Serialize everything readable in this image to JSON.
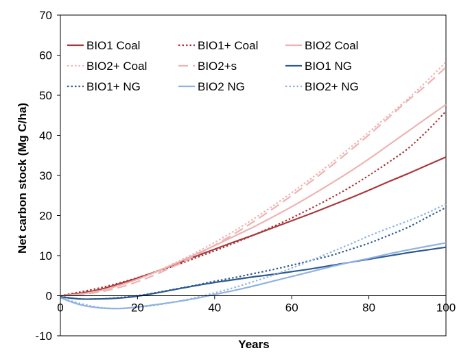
{
  "chart_data": {
    "type": "line",
    "xlabel": "Years",
    "ylabel": "Net carbon stock (Mg C/ha)",
    "xlim": [
      0,
      100
    ],
    "ylim": [
      -10,
      70
    ],
    "xticks": [
      0,
      20,
      40,
      60,
      80,
      100
    ],
    "yticks": [
      -10,
      0,
      10,
      20,
      30,
      40,
      50,
      60,
      70
    ],
    "grid": false,
    "legend_position": "top-left",
    "x": [
      0,
      5,
      10,
      15,
      20,
      25,
      30,
      35,
      40,
      45,
      50,
      55,
      60,
      65,
      70,
      75,
      80,
      85,
      90,
      95,
      100
    ],
    "series": [
      {
        "name": "BIO1 Coal",
        "color": "#A9373A",
        "dash": "solid",
        "values": [
          0,
          0.6,
          1.5,
          2.9,
          4.4,
          6.1,
          7.9,
          9.8,
          11.6,
          13.4,
          15.1,
          16.9,
          18.7,
          20.5,
          22.4,
          24.3,
          26.3,
          28.4,
          30.4,
          32.5,
          34.6
        ]
      },
      {
        "name": "BIO1+ Coal",
        "color": "#A9373A",
        "dash": "dotted",
        "values": [
          0,
          0.9,
          1.9,
          3.1,
          4.5,
          6.0,
          7.6,
          9.4,
          11.2,
          13.1,
          15.1,
          17.2,
          19.4,
          21.8,
          24.3,
          27.0,
          30.0,
          33.2,
          36.6,
          41.0,
          46.0
        ]
      },
      {
        "name": "BIO2 Coal",
        "color": "#EDB3B2",
        "dash": "solid",
        "values": [
          0,
          0.4,
          1.2,
          2.5,
          4.1,
          6.0,
          8.1,
          10.3,
          12.5,
          14.8,
          17.1,
          19.6,
          22.2,
          25.0,
          27.9,
          30.9,
          34.1,
          37.5,
          40.9,
          44.3,
          47.7
        ]
      },
      {
        "name": "BIO2+ Coal",
        "color": "#F0B3B3",
        "dash": "dotted",
        "values": [
          0,
          0.4,
          1.2,
          2.5,
          4.1,
          6.1,
          8.3,
          10.7,
          13.3,
          16.1,
          19.1,
          22.3,
          25.7,
          29.2,
          32.9,
          36.8,
          40.8,
          44.9,
          49.0,
          53.5,
          58.3
        ]
      },
      {
        "name": "BIO2+s",
        "color": "#EDB3B2",
        "dash": "dashed",
        "values": [
          0,
          0.3,
          0.9,
          2.0,
          3.5,
          5.4,
          7.6,
          10.0,
          12.6,
          15.4,
          18.4,
          21.6,
          25.0,
          28.5,
          32.2,
          36.1,
          40.1,
          44.3,
          48.6,
          52.6,
          57.0
        ]
      },
      {
        "name": "BIO1 NG",
        "color": "#2E5A8F",
        "dash": "solid",
        "values": [
          -0.3,
          -0.8,
          -0.8,
          -0.6,
          -0.1,
          0.7,
          1.6,
          2.5,
          3.3,
          4.0,
          4.7,
          5.3,
          6.0,
          6.7,
          7.5,
          8.3,
          9.1,
          9.9,
          10.7,
          11.4,
          12.1
        ]
      },
      {
        "name": "BIO1+ NG",
        "color": "#2E5A8F",
        "dash": "dotted",
        "values": [
          -0.2,
          -0.8,
          -0.8,
          -0.5,
          0.0,
          0.8,
          1.7,
          2.6,
          3.6,
          4.5,
          5.5,
          6.5,
          7.6,
          8.8,
          10.0,
          11.5,
          13.1,
          15.0,
          17.0,
          19.5,
          22.0
        ]
      },
      {
        "name": "BIO2 NG",
        "color": "#8EB2E2",
        "dash": "solid",
        "values": [
          -0.5,
          -2.2,
          -3.0,
          -3.2,
          -2.8,
          -2.2,
          -1.5,
          -0.7,
          0.3,
          1.3,
          2.4,
          3.6,
          4.8,
          6.0,
          7.2,
          8.3,
          9.3,
          10.4,
          11.4,
          12.3,
          13.2
        ]
      },
      {
        "name": "BIO2+ NG",
        "color": "#8EB2E2",
        "dash": "dotted",
        "values": [
          -0.5,
          -1.9,
          -2.9,
          -3.2,
          -2.9,
          -2.3,
          -1.5,
          -0.5,
          0.7,
          2.0,
          3.5,
          5.1,
          6.9,
          8.8,
          10.8,
          12.8,
          14.9,
          16.8,
          18.6,
          20.6,
          22.9
        ]
      }
    ]
  }
}
